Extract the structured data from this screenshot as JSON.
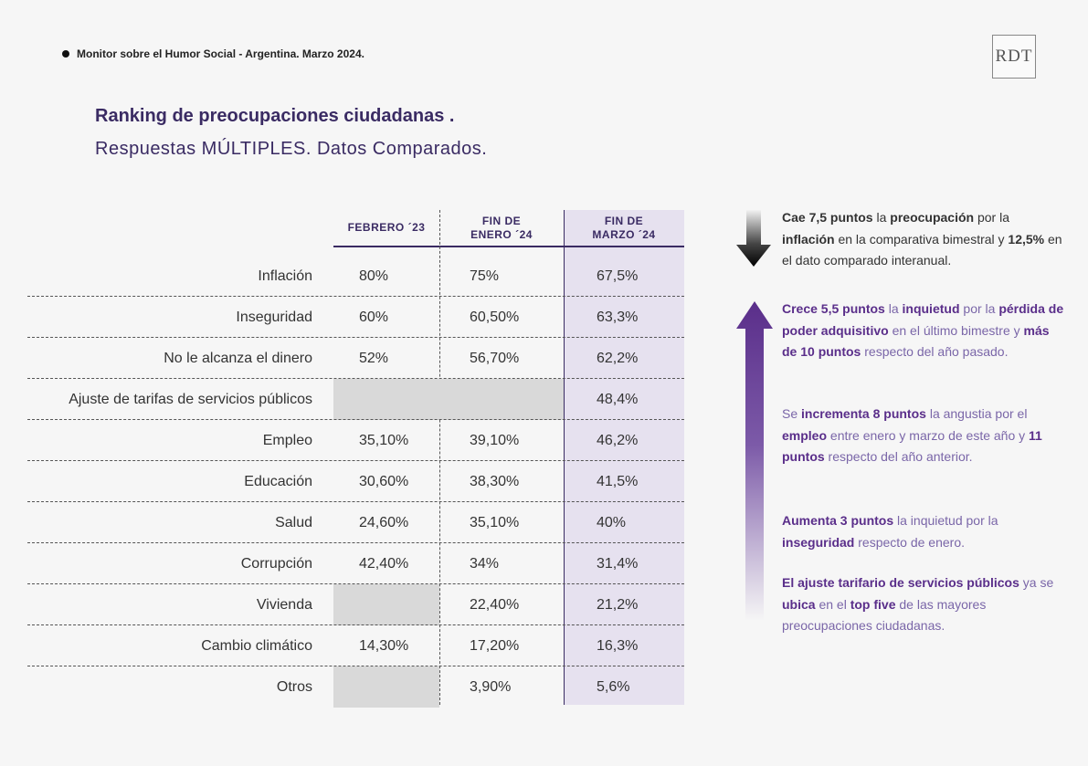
{
  "header": {
    "source": "Monitor sobre el Humor Social - Argentina. Marzo 2024.",
    "logo": "RDT"
  },
  "title": "Ranking de preocupaciones ciudadanas .",
  "subtitle": "Respuestas MÚLTIPLES. Datos Comparados.",
  "table": {
    "columns": [
      {
        "label_line1": "FEBRERO ´23",
        "label_line2": ""
      },
      {
        "label_line1": "FIN DE",
        "label_line2": "ENERO ´24"
      },
      {
        "label_line1": "FIN DE",
        "label_line2": "MARZO ´24"
      }
    ],
    "rows": [
      {
        "label": "Inflación",
        "feb23": "80%",
        "ene24": "75%",
        "mar24": "67,5%"
      },
      {
        "label": "Inseguridad",
        "feb23": "60%",
        "ene24": "60,50%",
        "mar24": "63,3%"
      },
      {
        "label": "No le alcanza el dinero",
        "feb23": "52%",
        "ene24": "56,70%",
        "mar24": "62,2%"
      },
      {
        "label": "Ajuste de tarifas de servicios públicos",
        "feb23": "",
        "ene24": "",
        "mar24": "48,4%"
      },
      {
        "label": "Empleo",
        "feb23": "35,10%",
        "ene24": "39,10%",
        "mar24": "46,2%"
      },
      {
        "label": "Educación",
        "feb23": "30,60%",
        "ene24": "38,30%",
        "mar24": "41,5%"
      },
      {
        "label": "Salud",
        "feb23": "24,60%",
        "ene24": "35,10%",
        "mar24": "40%"
      },
      {
        "label": "Corrupción",
        "feb23": "42,40%",
        "ene24": "34%",
        "mar24": "31,4%"
      },
      {
        "label": "Vivienda",
        "feb23": "",
        "ene24": "22,40%",
        "mar24": "21,2%"
      },
      {
        "label": "Cambio climático",
        "feb23": "14,30%",
        "ene24": "17,20%",
        "mar24": "16,3%"
      },
      {
        "label": "Otros",
        "feb23": "",
        "ene24": "3,90%",
        "mar24": "5,6%"
      }
    ]
  },
  "notes": {
    "note1": [
      {
        "t": "Cae 7,5 puntos",
        "b": true
      },
      {
        "t": " la ",
        "b": false
      },
      {
        "t": "preocupación",
        "b": true
      },
      {
        "t": "  por la ",
        "b": false
      },
      {
        "t": "inflación",
        "b": true
      },
      {
        "t": " en la comparativa bimestral y ",
        "b": false
      },
      {
        "t": "12,5%",
        "b": true
      },
      {
        "t": " en el dato  comparado interanual.",
        "b": false
      }
    ],
    "note2": [
      {
        "t": "Crece 5,5 puntos",
        "b": true
      },
      {
        "t": " la ",
        "b": false
      },
      {
        "t": "inquietud",
        "b": true
      },
      {
        "t": " por la ",
        "b": false
      },
      {
        "t": "pérdida de poder adquisitivo",
        "b": true
      },
      {
        "t": "  en el último bimestre y ",
        "b": false
      },
      {
        "t": "más de 10 puntos",
        "b": true
      },
      {
        "t": " respecto del año pasado.",
        "b": false
      }
    ],
    "note3": [
      {
        "t": "Se ",
        "b": false
      },
      {
        "t": "incrementa 8 puntos",
        "b": true
      },
      {
        "t": " la angustia  por el ",
        "b": false
      },
      {
        "t": "empleo",
        "b": true
      },
      {
        "t": " entre enero y marzo  de este año y ",
        "b": false
      },
      {
        "t": "11 puntos",
        "b": true
      },
      {
        "t": " respecto del año anterior.",
        "b": false
      }
    ],
    "note4": [
      {
        "t": "Aumenta  3 puntos",
        "b": true
      },
      {
        "t": " la inquietud  por la ",
        "b": false
      },
      {
        "t": "inseguridad",
        "b": true
      },
      {
        "t": " respecto de enero.",
        "b": false
      }
    ],
    "note5": [
      {
        "t": "El ajuste tarifario de servicios públicos",
        "b": true
      },
      {
        "t": " ya se ",
        "b": false
      },
      {
        "t": "ubica",
        "b": true
      },
      {
        "t": " en el ",
        "b": false
      },
      {
        "t": "top five",
        "b": true
      },
      {
        "t": "  de las mayores preocupaciones ciudadanas.",
        "b": false
      }
    ]
  },
  "colors": {
    "accent_purple": "#3a2b63",
    "highlight_column": "#e6e1ef",
    "empty_cell": "#d9d9d9",
    "note_bold_purple": "#5a2e8a"
  },
  "icons": {
    "down_arrow": "arrow-down-gradient-black",
    "up_arrow": "arrow-up-gradient-purple"
  }
}
